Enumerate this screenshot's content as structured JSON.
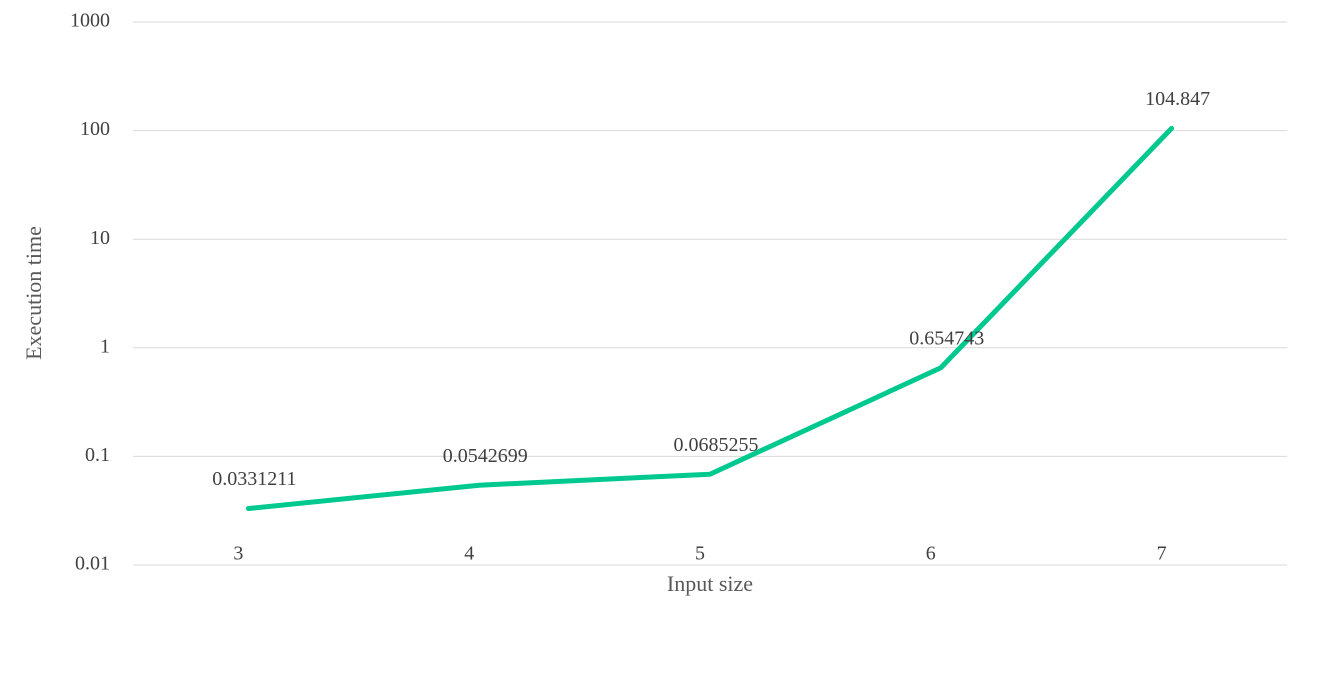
{
  "chart_data": {
    "type": "line",
    "x_label": "Input size",
    "y_label": "Execution time",
    "categories": [
      "3",
      "4",
      "5",
      "6",
      "7"
    ],
    "values": [
      0.0331211,
      0.0542699,
      0.0685255,
      0.654743,
      104.847
    ],
    "color": "#00c98f",
    "log_scale_y": true,
    "ylim": [
      0.01,
      1000
    ],
    "yticks": [
      0.01,
      0.1,
      1,
      10,
      100,
      1000
    ],
    "grid": true
  }
}
